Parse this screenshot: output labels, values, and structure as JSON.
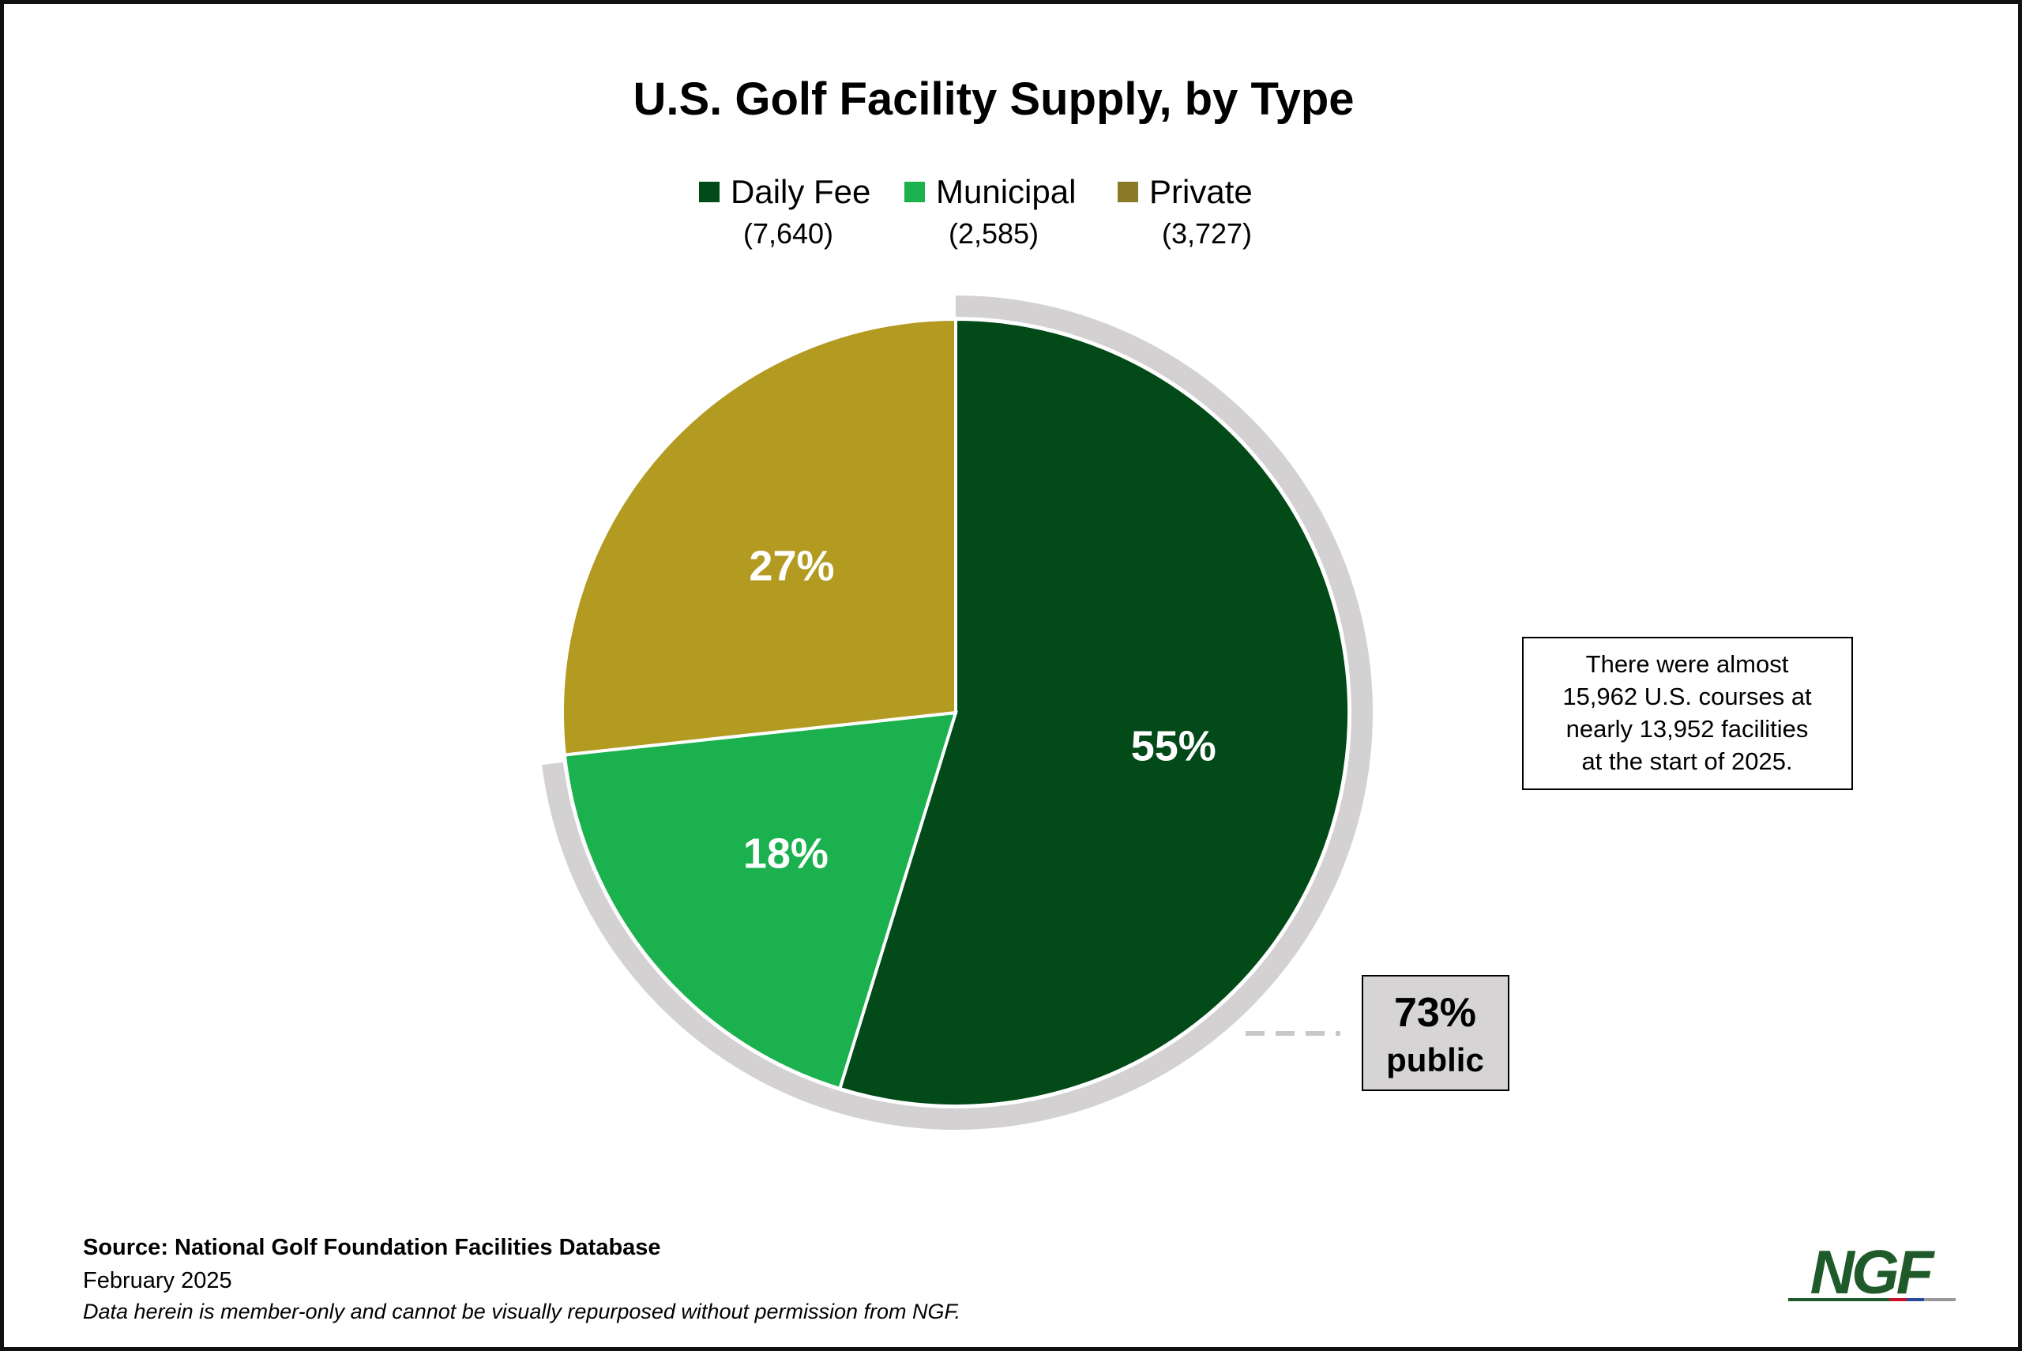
{
  "chart_data": {
    "type": "pie",
    "title": "U.S. Golf Facility Supply, by Type",
    "categories": [
      "Daily Fee",
      "Municipal",
      "Private"
    ],
    "values": [
      7640,
      2585,
      3727
    ],
    "count_labels": [
      "(7,640)",
      "(2,585)",
      "(3,727)"
    ],
    "percent_labels": [
      "55%",
      "18%",
      "27%"
    ],
    "colors": [
      "#024a17",
      "#1ab14e",
      "#b39a21"
    ],
    "legend_colors": [
      "#024a17",
      "#1ab14e",
      "#8a7a28"
    ],
    "legend_position": "top",
    "annotation": {
      "lines": [
        "There were almost",
        "15,962 U.S. courses at",
        "nearly 13,952 facilities",
        "at the start of 2025."
      ]
    },
    "public_callout": {
      "value": "73%",
      "label": "public",
      "share": 0.73,
      "ring_color": "#d3d1d1"
    }
  },
  "footer": {
    "source": "Source: National Golf Foundation Facilities Database",
    "date": "February 2025",
    "disclaimer": "Data herein is member-only and cannot be visually repurposed without permission from NGF."
  },
  "logo": {
    "text": "NGF",
    "color": "#1e5a2a",
    "underline_colors": [
      "#1e5a2a",
      "#c9102e",
      "#2a4aa0",
      "#999999"
    ]
  }
}
